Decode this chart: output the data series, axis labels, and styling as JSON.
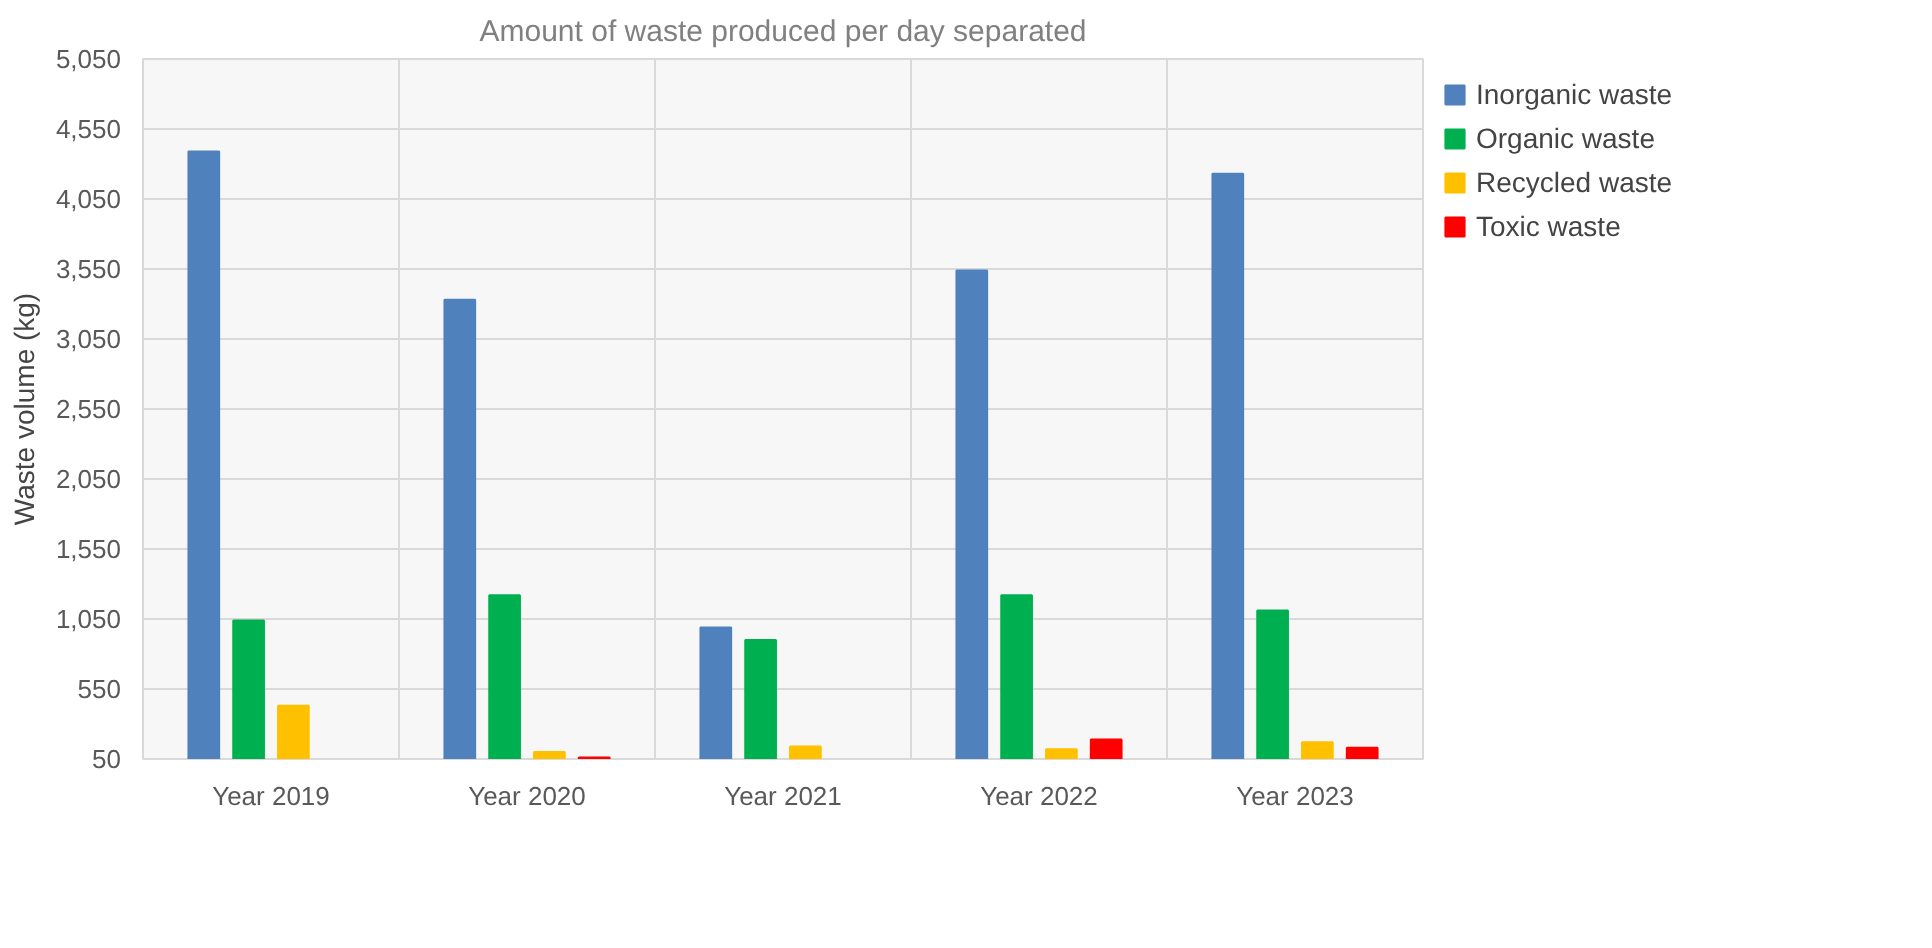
{
  "chart_data": {
    "type": "bar",
    "title": "Amount of waste produced per day separated",
    "ylabel": "Waste volume (kg)",
    "categories": [
      "Year 2019",
      "Year 2020",
      "Year 2021",
      "Year 2022",
      "Year 2023"
    ],
    "series": [
      {
        "name": "Inorganic waste",
        "color": "#4f81bd",
        "values": [
          4390,
          3330,
          990,
          3540,
          4230
        ]
      },
      {
        "name": "Organic waste",
        "color": "#00b050",
        "values": [
          1040,
          1220,
          900,
          1220,
          1110
        ]
      },
      {
        "name": "Recycled waste",
        "color": "#ffc000",
        "values": [
          430,
          100,
          140,
          120,
          170
        ]
      },
      {
        "name": "Toxic waste",
        "color": "#ff0000",
        "values": [
          null,
          60,
          null,
          190,
          130
        ]
      }
    ],
    "ylim": [
      50,
      5050
    ],
    "yticks": [
      50,
      550,
      {
        "value": 1050,
        "label": "1,050"
      },
      {
        "value": 1550,
        "label": "1,550"
      },
      {
        "value": 2050,
        "label": "2,050"
      },
      {
        "value": 2550,
        "label": "2,550"
      },
      {
        "value": 3050,
        "label": "3,050"
      },
      {
        "value": 3550,
        "label": "3,550"
      },
      {
        "value": 4050,
        "label": "4,050"
      },
      {
        "value": 4550,
        "label": "4,550"
      },
      {
        "value": 5050,
        "label": "5,050"
      }
    ],
    "grid": true,
    "legend": "right"
  }
}
